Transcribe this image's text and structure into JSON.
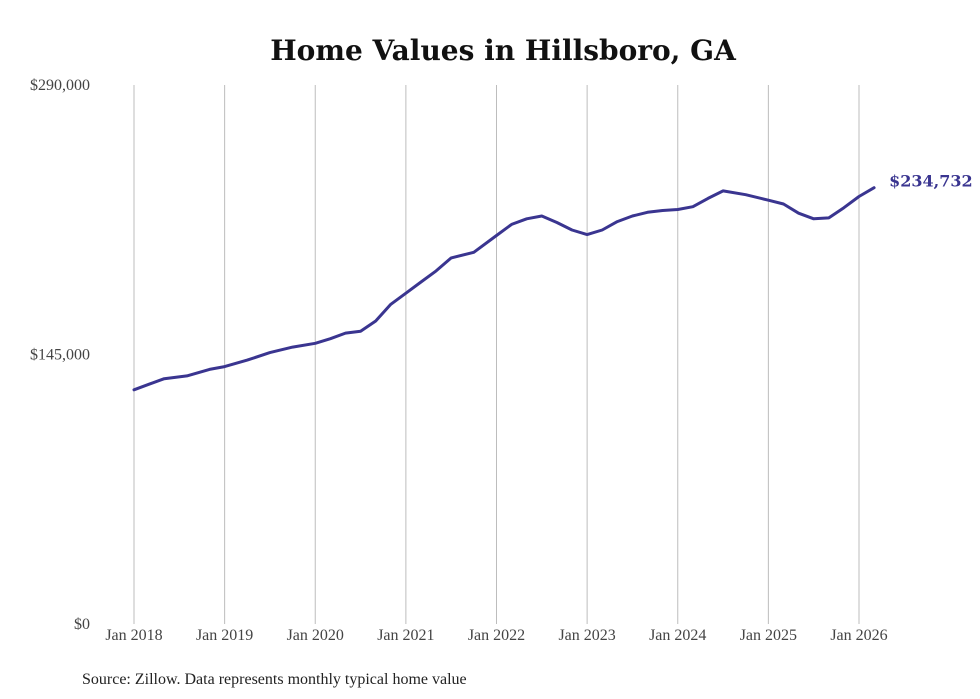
{
  "chart_data": {
    "type": "line",
    "title": "Home Values in Hillsboro, GA",
    "source": "Source: Zillow. Data represents monthly typical home value",
    "xlabel": "",
    "ylabel": "",
    "ylim": [
      0,
      290000
    ],
    "yticks": [
      {
        "value": 0,
        "label": "$0"
      },
      {
        "value": 145000,
        "label": "$145,000"
      },
      {
        "value": 290000,
        "label": "$290,000"
      }
    ],
    "xticks": [
      {
        "value": 2018,
        "label": "Jan 2018"
      },
      {
        "value": 2019,
        "label": "Jan 2019"
      },
      {
        "value": 2020,
        "label": "Jan 2020"
      },
      {
        "value": 2021,
        "label": "Jan 2021"
      },
      {
        "value": 2022,
        "label": "Jan 2022"
      },
      {
        "value": 2023,
        "label": "Jan 2023"
      },
      {
        "value": 2024,
        "label": "Jan 2024"
      },
      {
        "value": 2025,
        "label": "Jan 2025"
      },
      {
        "value": 2026,
        "label": "Jan 2026"
      }
    ],
    "grid": "vertical",
    "line_color": "#3a3590",
    "end_label": "$234,732",
    "series": [
      {
        "x": [
          2018.0,
          2018.1667,
          2018.3333,
          2018.5833,
          2018.8333,
          2019.0,
          2019.25,
          2019.5,
          2019.75,
          2020.0,
          2020.1667,
          2020.3333,
          2020.5,
          2020.6667,
          2020.8333,
          2021.0,
          2021.1667,
          2021.3333,
          2021.5,
          2021.75,
          2022.0,
          2022.1667,
          2022.3333,
          2022.5,
          2022.6667,
          2022.8333,
          2023.0,
          2023.1667,
          2023.3333,
          2023.5,
          2023.6667,
          2023.8333,
          2024.0,
          2024.1667,
          2024.3333,
          2024.5,
          2024.75,
          2025.0,
          2025.1667,
          2025.3333,
          2025.5,
          2025.6667,
          2025.8333,
          2026.0,
          2026.1667
        ],
        "y": [
          126000,
          129000,
          132000,
          133500,
          137000,
          138500,
          142000,
          146000,
          149000,
          151000,
          153500,
          156500,
          157500,
          163000,
          172000,
          178000,
          184000,
          190000,
          197000,
          200000,
          209000,
          215000,
          218000,
          219500,
          216000,
          212000,
          209500,
          212000,
          216500,
          219500,
          221500,
          222500,
          223000,
          224500,
          229000,
          233000,
          231000,
          228000,
          226000,
          221000,
          218000,
          218500,
          224000,
          230000,
          234732
        ]
      }
    ]
  }
}
